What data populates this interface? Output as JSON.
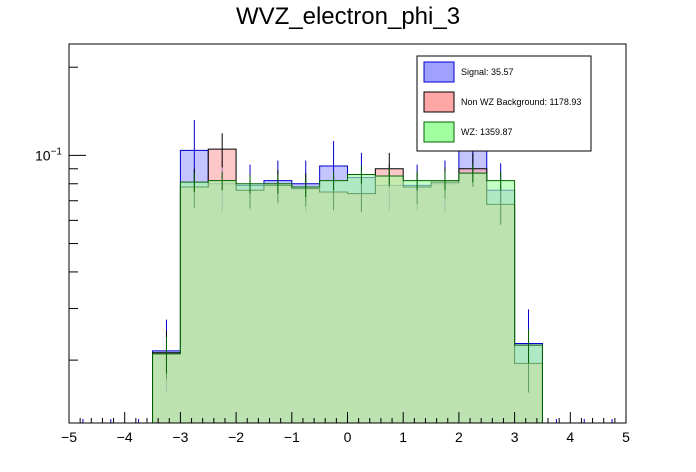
{
  "chart_data": {
    "type": "histogram",
    "title": "WVZ_electron_phi_3",
    "xlabel": "",
    "ylabel": "",
    "xlim": [
      -5,
      5
    ],
    "yscale": "log",
    "ylim": [
      0.0122,
      0.24
    ],
    "x_ticks": [
      "−5",
      "−4",
      "−3",
      "−2",
      "−1",
      "0",
      "1",
      "2",
      "3",
      "4",
      "5"
    ],
    "y_tick_label": {
      "base": "10",
      "exp": "−1"
    },
    "bin_edges": [
      -3.5,
      -3.0,
      -2.5,
      -2.0,
      -1.5,
      -1.0,
      -0.5,
      0.0,
      0.5,
      1.0,
      1.5,
      2.0,
      2.5,
      3.0,
      3.5
    ],
    "series": [
      {
        "name": "Signal",
        "legend": "Signal: 35.57",
        "fill": "#a0a0ff",
        "edge": "#0000cc",
        "values": [
          0.0215,
          0.104,
          0.08,
          0.079,
          0.082,
          0.08,
          0.092,
          0.084,
          0.079,
          0.079,
          0.08,
          0.104,
          0.076,
          0.0228
        ],
        "errors": [
          0.006,
          0.028,
          0.016,
          0.014,
          0.014,
          0.016,
          0.02,
          0.018,
          0.014,
          0.014,
          0.016,
          0.024,
          0.018,
          0.007
        ]
      },
      {
        "name": "Non WZ Background",
        "legend": "Non WZ Background: 1178.93",
        "fill": "#ffa6a6",
        "edge": "#000000",
        "values": [
          0.0212,
          0.078,
          0.105,
          0.076,
          0.079,
          0.077,
          0.075,
          0.074,
          0.09,
          0.078,
          0.081,
          0.09,
          0.068,
          0.0195
        ],
        "errors": [
          0.004,
          0.012,
          0.014,
          0.01,
          0.01,
          0.01,
          0.01,
          0.01,
          0.012,
          0.01,
          0.01,
          0.012,
          0.01,
          0.004
        ]
      },
      {
        "name": "WZ",
        "legend": "WZ: 1359.87",
        "fill": "#a0ffa0",
        "edge": "#006600",
        "values": [
          0.021,
          0.081,
          0.082,
          0.08,
          0.08,
          0.078,
          0.082,
          0.086,
          0.085,
          0.082,
          0.082,
          0.087,
          0.082,
          0.0225
        ],
        "errors": [
          0.003,
          0.006,
          0.006,
          0.006,
          0.006,
          0.006,
          0.006,
          0.006,
          0.006,
          0.006,
          0.006,
          0.006,
          0.006,
          0.003
        ]
      }
    ],
    "legend_position": "top-right"
  }
}
